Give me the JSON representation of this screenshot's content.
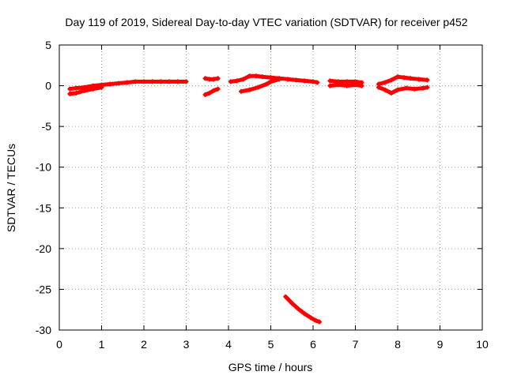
{
  "chart_data": {
    "type": "scatter",
    "title": "Day 119 of 2019, Sidereal Day-to-day VTEC variation (SDTVAR) for receiver p452",
    "xlabel": "GPS time / hours",
    "ylabel": "SDTVAR / TECUs",
    "xlim": [
      0,
      10
    ],
    "ylim": [
      -30,
      5
    ],
    "xticks": [
      0,
      1,
      2,
      3,
      4,
      5,
      6,
      7,
      8,
      9,
      10
    ],
    "yticks": [
      5,
      0,
      -5,
      -10,
      -15,
      -20,
      -25,
      -30
    ],
    "grid": true,
    "legend": "none",
    "marker_color": "#ff0000",
    "series": [
      {
        "x": [
          0.25,
          0.4,
          0.6,
          0.8,
          1.0,
          1.2,
          1.4,
          1.6,
          1.8,
          2.0,
          2.2,
          2.4,
          2.6,
          2.8,
          3.0
        ],
        "y": [
          -0.4,
          -0.3,
          -0.2,
          0.0,
          0.1,
          0.2,
          0.3,
          0.4,
          0.5,
          0.5,
          0.5,
          0.5,
          0.5,
          0.5,
          0.5
        ]
      },
      {
        "x": [
          0.25,
          0.4,
          0.6,
          0.8,
          1.0
        ],
        "y": [
          -1.0,
          -0.9,
          -0.6,
          -0.4,
          -0.2
        ]
      },
      {
        "x": [
          3.45,
          3.55,
          3.65,
          3.75
        ],
        "y": [
          0.9,
          0.8,
          0.8,
          0.9
        ]
      },
      {
        "x": [
          3.45,
          3.55,
          3.65,
          3.75
        ],
        "y": [
          -1.1,
          -0.9,
          -0.6,
          -0.4
        ]
      },
      {
        "x": [
          4.05,
          4.2,
          4.35,
          4.5,
          4.65,
          4.8,
          5.0,
          5.2,
          5.4,
          5.6,
          5.8,
          6.0,
          6.1
        ],
        "y": [
          0.5,
          0.6,
          0.8,
          1.2,
          1.2,
          1.1,
          1.0,
          0.9,
          0.8,
          0.7,
          0.6,
          0.5,
          0.4
        ]
      },
      {
        "x": [
          4.3,
          4.5,
          4.7,
          4.9,
          5.0,
          5.2
        ],
        "y": [
          -0.7,
          -0.5,
          -0.2,
          0.2,
          0.5,
          0.8
        ]
      },
      {
        "x": [
          5.35,
          5.5,
          5.65,
          5.8,
          5.95,
          6.05,
          6.15
        ],
        "y": [
          -25.9,
          -26.7,
          -27.4,
          -28.0,
          -28.5,
          -28.8,
          -29.0
        ]
      },
      {
        "x": [
          6.4,
          6.6,
          6.8,
          7.0,
          7.15
        ],
        "y": [
          0.6,
          0.5,
          0.5,
          0.5,
          0.4
        ]
      },
      {
        "x": [
          6.4,
          6.6,
          6.8,
          7.0,
          7.15
        ],
        "y": [
          0.0,
          0.1,
          0.0,
          0.1,
          0.0
        ]
      },
      {
        "x": [
          7.55,
          7.7,
          7.85,
          8.0,
          8.15,
          8.3,
          8.5,
          8.7
        ],
        "y": [
          0.2,
          0.4,
          0.7,
          1.1,
          1.0,
          0.9,
          0.8,
          0.7
        ]
      },
      {
        "x": [
          7.55,
          7.7,
          7.85,
          8.0,
          8.2,
          8.4,
          8.6,
          8.7
        ],
        "y": [
          -0.2,
          -0.5,
          -0.9,
          -0.5,
          -0.3,
          -0.4,
          -0.3,
          -0.2
        ]
      }
    ]
  }
}
